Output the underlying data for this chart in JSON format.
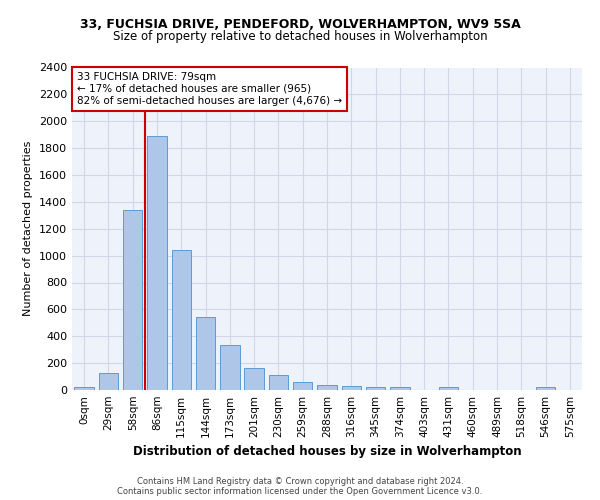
{
  "title1": "33, FUCHSIA DRIVE, PENDEFORD, WOLVERHAMPTON, WV9 5SA",
  "title2": "Size of property relative to detached houses in Wolverhampton",
  "xlabel": "Distribution of detached houses by size in Wolverhampton",
  "ylabel": "Number of detached properties",
  "categories": [
    "0sqm",
    "29sqm",
    "58sqm",
    "86sqm",
    "115sqm",
    "144sqm",
    "173sqm",
    "201sqm",
    "230sqm",
    "259sqm",
    "288sqm",
    "316sqm",
    "345sqm",
    "374sqm",
    "403sqm",
    "431sqm",
    "460sqm",
    "489sqm",
    "518sqm",
    "546sqm",
    "575sqm"
  ],
  "bar_heights": [
    20,
    125,
    1340,
    1890,
    1045,
    540,
    335,
    165,
    110,
    60,
    40,
    30,
    25,
    20,
    0,
    25,
    0,
    0,
    0,
    20,
    0
  ],
  "bar_color": "#aec6e8",
  "bar_edge_color": "#5b9bd5",
  "bar_width": 0.8,
  "red_line_x": 2.5,
  "annotation_text": "33 FUCHSIA DRIVE: 79sqm\n← 17% of detached houses are smaller (965)\n82% of semi-detached houses are larger (4,676) →",
  "annotation_box_color": "#ffffff",
  "annotation_edge_color": "#cc0000",
  "ylim": [
    0,
    2400
  ],
  "yticks": [
    0,
    200,
    400,
    600,
    800,
    1000,
    1200,
    1400,
    1600,
    1800,
    2000,
    2200,
    2400
  ],
  "grid_color": "#d0d8e8",
  "background_color": "#eef2fa",
  "footer1": "Contains HM Land Registry data © Crown copyright and database right 2024.",
  "footer2": "Contains public sector information licensed under the Open Government Licence v3.0."
}
